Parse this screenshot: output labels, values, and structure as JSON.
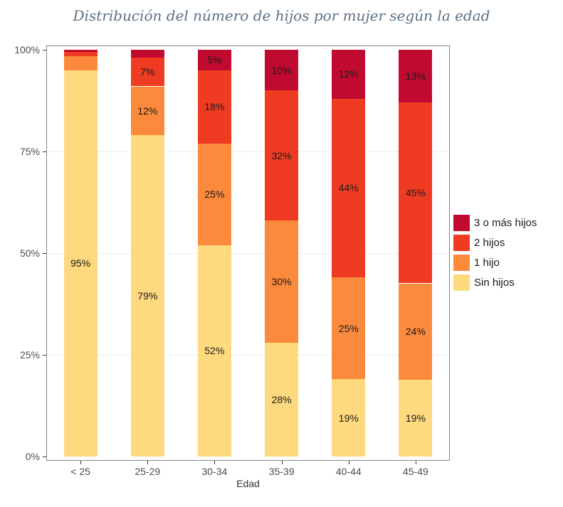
{
  "chart_data": {
    "type": "bar",
    "stacked": true,
    "percent_scale": true,
    "title": "Distribución del número de hijos por mujer según la edad",
    "xlabel": "Edad",
    "ylabel": "",
    "ylim": [
      0,
      100
    ],
    "grid": true,
    "legend_position": "right",
    "categories": [
      "< 25",
      "25-29",
      "30-34",
      "35-39",
      "40-44",
      "45-49"
    ],
    "series": [
      {
        "name": "Sin hijos",
        "color": "#fed97e",
        "values": [
          95,
          79,
          52,
          28,
          19,
          19
        ],
        "labels": [
          "95%",
          "79%",
          "52%",
          "28%",
          "19%",
          "19%"
        ]
      },
      {
        "name": "1 hijo",
        "color": "#fb8a3c",
        "values": [
          3.5,
          12,
          25,
          30,
          25,
          24
        ],
        "labels": [
          "",
          "12%",
          "25%",
          "30%",
          "25%",
          "24%"
        ]
      },
      {
        "name": "2 hijos",
        "color": "#ef3b22",
        "values": [
          1,
          7,
          18,
          32,
          44,
          45
        ],
        "labels": [
          "",
          "7%",
          "18%",
          "32%",
          "44%",
          "45%"
        ]
      },
      {
        "name": "3 o más hijos",
        "color": "#c00a30",
        "values": [
          0.5,
          2,
          5,
          10,
          12,
          13
        ],
        "labels": [
          "",
          "",
          "5%",
          "10%",
          "12%",
          "13%"
        ]
      }
    ],
    "y_ticks": [
      {
        "value": 0,
        "label": "0%"
      },
      {
        "value": 25,
        "label": "25%"
      },
      {
        "value": 50,
        "label": "50%"
      },
      {
        "value": 75,
        "label": "75%"
      },
      {
        "value": 100,
        "label": "100%"
      }
    ],
    "legend_order": [
      "3 o más hijos",
      "2 hijos",
      "1 hijo",
      "Sin hijos"
    ]
  }
}
